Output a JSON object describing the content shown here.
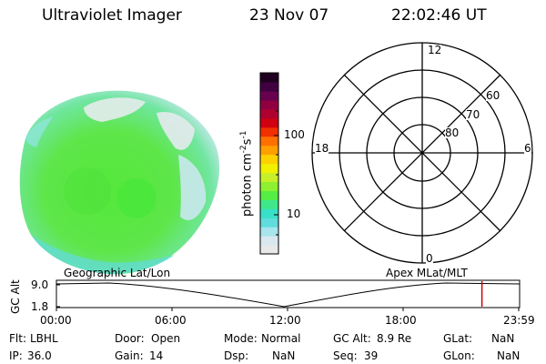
{
  "header": {
    "instrument": "Ultraviolet Imager",
    "date": "23 Nov 07",
    "time": "22:02:46 UT"
  },
  "colorbar": {
    "unit_base": "photon cm",
    "unit_exp1": "-2",
    "unit_mid": "s",
    "unit_exp2": "-1",
    "ticks": [
      "100",
      "10"
    ],
    "colors": [
      "#e8e8e8",
      "#d8e8ee",
      "#a8e4ec",
      "#60dcdc",
      "#38e0c8",
      "#3ee88a",
      "#55ee44",
      "#8ef030",
      "#c8f028",
      "#f0f000",
      "#ffd000",
      "#ffa000",
      "#ff7000",
      "#f03000",
      "#d00010",
      "#b00030",
      "#900040",
      "#680050",
      "#400040",
      "#200020"
    ]
  },
  "polar": {
    "labels": {
      "top": "12",
      "bottom": "0",
      "left": "18",
      "right": "6"
    },
    "rings": [
      "80",
      "70",
      "60"
    ]
  },
  "timeline": {
    "left_title": "Geographic Lat/Lon",
    "right_title": "Apex MLat/MLT",
    "y_label": "GC Alt",
    "y_max": "9.0",
    "y_min": "1.8",
    "x_ticks": [
      "00:00",
      "06:00",
      "12:00",
      "18:00",
      "23:59"
    ],
    "marker_time": "22:02:46",
    "marker_color": "#cc0000"
  },
  "info": [
    [
      {
        "k": "Flt:",
        "v": "LBHL"
      },
      {
        "k": "Door:",
        "v": "Open"
      },
      {
        "k": "Mode:",
        "v": "Normal"
      },
      {
        "k": "GC Alt:",
        "v": "8.9 Re"
      },
      {
        "k": "GLat:",
        "v": "NaN"
      }
    ],
    [
      {
        "k": "IP:",
        "v": "36.0"
      },
      {
        "k": "Gain:",
        "v": "14"
      },
      {
        "k": "Dsp:",
        "v": "NaN"
      },
      {
        "k": "Seq:",
        "v": "39"
      },
      {
        "k": "GLon:",
        "v": "NaN"
      }
    ]
  ]
}
